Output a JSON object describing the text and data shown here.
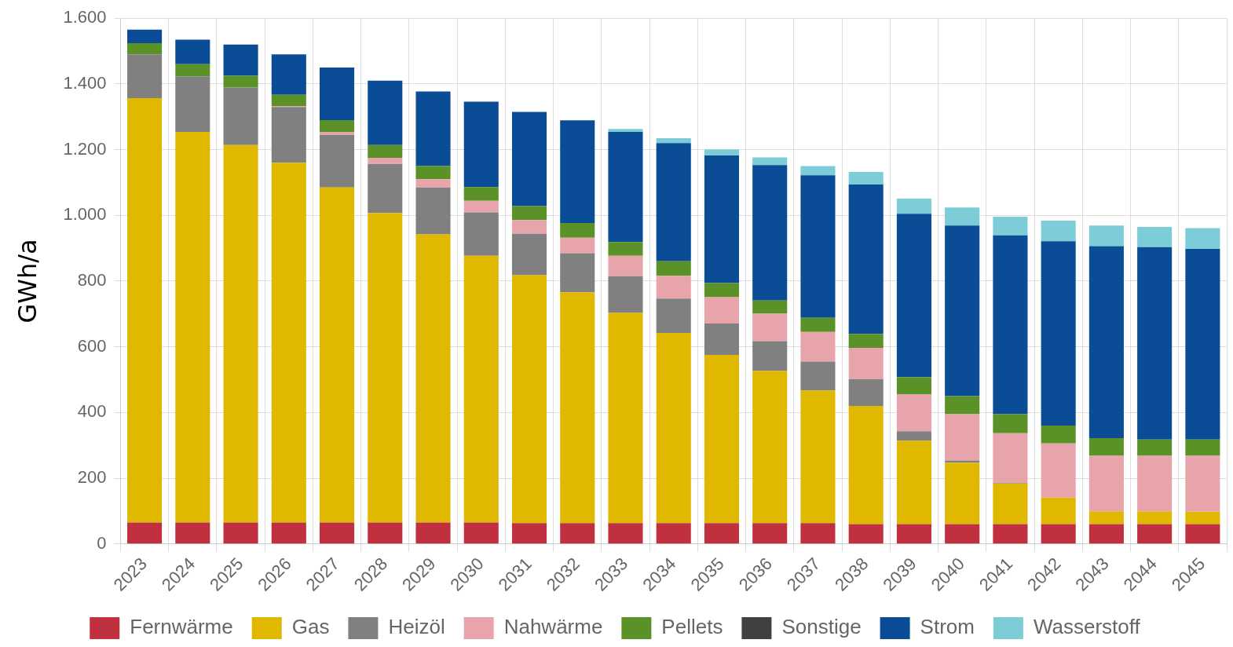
{
  "chart_data": {
    "type": "bar",
    "stacked": true,
    "ylabel": "GWh/a",
    "categories": [
      "2023",
      "2024",
      "2025",
      "2026",
      "2027",
      "2028",
      "2029",
      "2030",
      "2031",
      "2032",
      "2033",
      "2034",
      "2035",
      "2036",
      "2037",
      "2038",
      "2039",
      "2040",
      "2041",
      "2042",
      "2043",
      "2044",
      "2045"
    ],
    "series": [
      {
        "name": "Fernwärme",
        "color": "#c0303f",
        "values": [
          65,
          65,
          65,
          65,
          65,
          65,
          65,
          65,
          63,
          63,
          63,
          63,
          63,
          63,
          63,
          60,
          60,
          60,
          60,
          60,
          60,
          60,
          60
        ]
      },
      {
        "name": "Gas",
        "color": "#e0b800",
        "values": [
          1292,
          1189,
          1149,
          1095,
          1020,
          942,
          877,
          812,
          755,
          703,
          640,
          579,
          512,
          463,
          404,
          360,
          254,
          187,
          124,
          81,
          39,
          39,
          38
        ]
      },
      {
        "name": "Heizöl",
        "color": "#808080",
        "values": [
          133,
          169,
          175,
          170,
          160,
          149,
          143,
          132,
          126,
          119,
          112,
          105,
          96,
          91,
          88,
          82,
          29,
          7,
          2,
          0,
          0,
          0,
          0
        ]
      },
      {
        "name": "Nahwärme",
        "color": "#e8a4ab",
        "values": [
          0,
          0,
          0,
          3,
          9,
          19,
          25,
          35,
          42,
          47,
          62,
          69,
          80,
          84,
          90,
          95,
          113,
          141,
          151,
          165,
          169,
          169,
          170
        ]
      },
      {
        "name": "Pellets",
        "color": "#5a9228",
        "values": [
          34,
          37,
          36,
          34,
          36,
          39,
          40,
          42,
          42,
          45,
          42,
          44,
          43,
          40,
          43,
          42,
          52,
          55,
          58,
          54,
          54,
          50,
          50
        ]
      },
      {
        "name": "Sonstige",
        "color": "#404040",
        "values": [
          0,
          0,
          0,
          0,
          0,
          0,
          0,
          0,
          0,
          0,
          0,
          0,
          0,
          0,
          0,
          0,
          0,
          0,
          0,
          0,
          0,
          0,
          0
        ]
      },
      {
        "name": "Strom",
        "color": "#0a4d96",
        "values": [
          41,
          75,
          95,
          123,
          160,
          196,
          227,
          260,
          287,
          312,
          335,
          360,
          388,
          412,
          434,
          455,
          497,
          519,
          544,
          561,
          584,
          585,
          580
        ]
      },
      {
        "name": "Wasserstoff",
        "color": "#7ccdd8",
        "values": [
          0,
          0,
          0,
          0,
          0,
          0,
          0,
          0,
          0,
          0,
          9,
          15,
          19,
          23,
          28,
          38,
          46,
          55,
          57,
          63,
          63,
          62,
          63
        ]
      }
    ],
    "ylim": [
      0,
      1600
    ],
    "yticks": [
      0,
      200,
      400,
      600,
      800,
      {
        "value": 1000,
        "label": "1.000"
      },
      {
        "value": 1200,
        "label": "1.200"
      },
      {
        "value": 1400,
        "label": "1.400"
      },
      {
        "value": 1600,
        "label": "1.600"
      }
    ],
    "grid": true,
    "legend": "bottom"
  }
}
